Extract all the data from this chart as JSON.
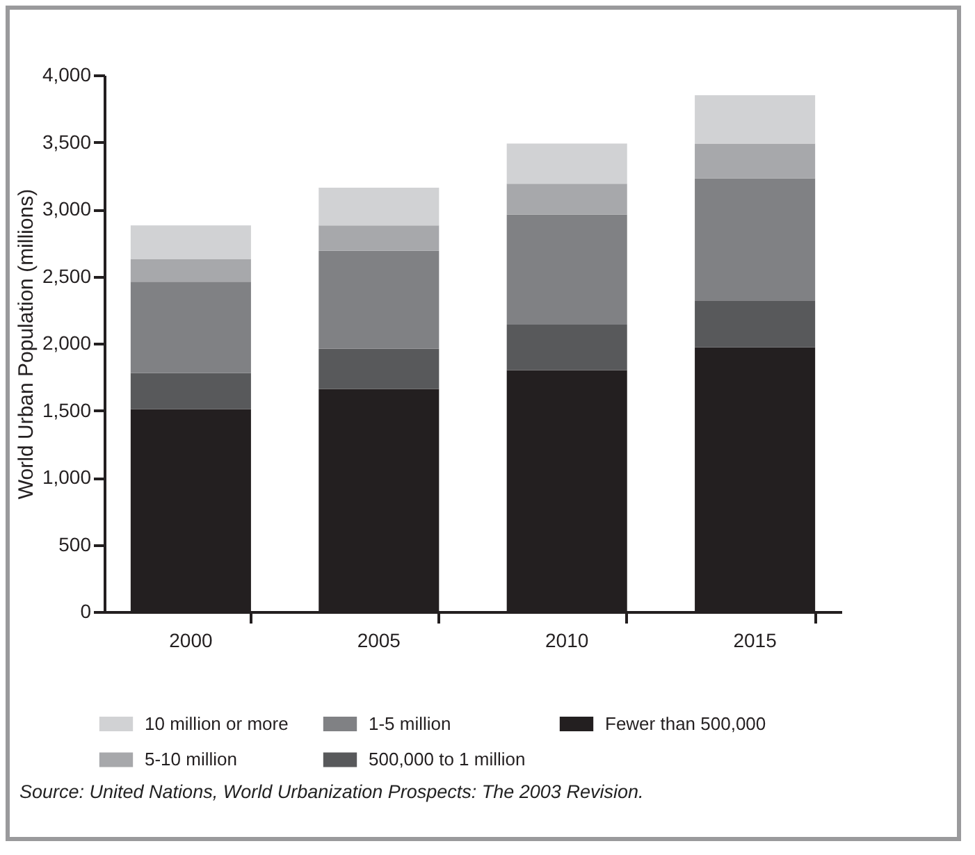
{
  "chart_data": {
    "type": "bar",
    "stacked": true,
    "ylabel": "World Urban Population (millions)",
    "categories": [
      "2000",
      "2005",
      "2010",
      "2015"
    ],
    "series": [
      {
        "name": "Fewer than 500,000",
        "color": "#231f20",
        "values": [
          1510,
          1660,
          1800,
          1970
        ]
      },
      {
        "name": "500,000 to 1 million",
        "color": "#58595b",
        "values": [
          270,
          300,
          340,
          350
        ]
      },
      {
        "name": "1-5 million",
        "color": "#808184",
        "values": [
          680,
          730,
          820,
          910
        ]
      },
      {
        "name": "5-10 million",
        "color": "#a7a8ab",
        "values": [
          170,
          190,
          230,
          260
        ]
      },
      {
        "name": "10 million or more",
        "color": "#d1d2d4",
        "values": [
          250,
          280,
          300,
          360
        ]
      }
    ],
    "ylim": [
      0,
      4000
    ],
    "yticks": [
      0,
      500,
      {
        "value": 1000,
        "label": "1,000"
      },
      {
        "value": 1500,
        "label": "1,500"
      },
      {
        "value": 2000,
        "label": "2,000"
      },
      {
        "value": 2500,
        "label": "2,500"
      },
      {
        "value": 3000,
        "label": "3,000"
      },
      {
        "value": 3500,
        "label": "3,500"
      },
      {
        "value": 4000,
        "label": "4,000"
      }
    ],
    "grid": false,
    "legend": "bottom",
    "annotations": [
      "Source: United Nations, World Urbanization Prospects: The 2003 Revision."
    ]
  }
}
